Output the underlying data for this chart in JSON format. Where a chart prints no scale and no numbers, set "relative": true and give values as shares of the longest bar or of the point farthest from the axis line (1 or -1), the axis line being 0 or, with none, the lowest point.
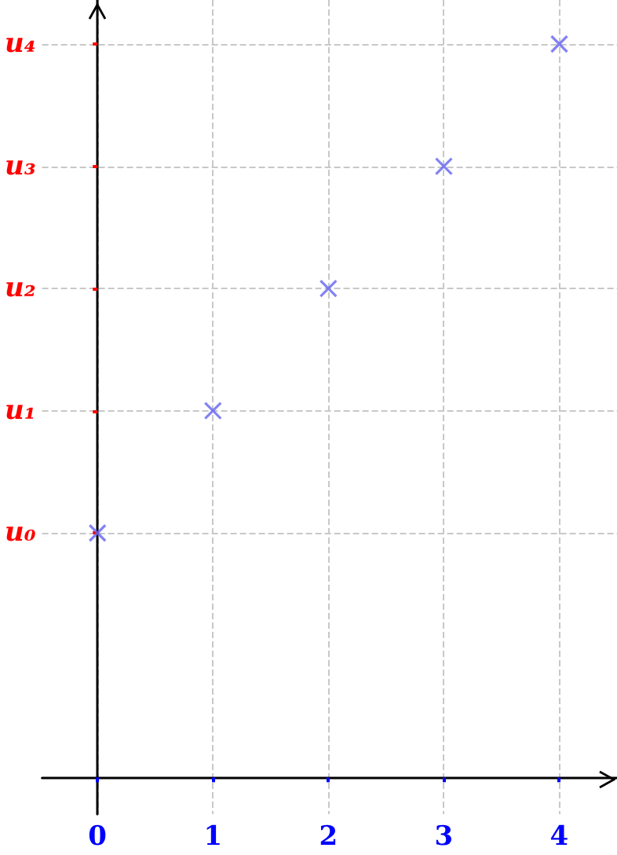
{
  "chart_data": {
    "type": "scatter",
    "x": [
      0,
      1,
      2,
      3,
      4
    ],
    "relative": true,
    "series": [
      {
        "color": "#6464f0",
        "values": [
          0.3333,
          0.5,
          0.6667,
          0.8333,
          1
        ]
      }
    ],
    "marker": "cross",
    "grid": true,
    "xlim": [
      -0.48,
      4.5
    ],
    "xticks": [
      0,
      1,
      2,
      3,
      4
    ],
    "annotations": [
      "u₀",
      "u₁",
      "u₂",
      "u₃",
      "u₄"
    ]
  }
}
